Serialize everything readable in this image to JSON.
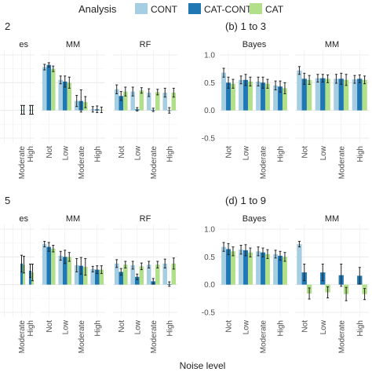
{
  "legend": {
    "title": "Analysis",
    "items": [
      {
        "label": "CONT",
        "color": "#a6cee3"
      },
      {
        "label": "CAT-CONT",
        "color": "#1f78b4"
      },
      {
        "label": "CAT",
        "color": "#b2df8a"
      }
    ]
  },
  "x_axis_title": "Noise level",
  "chart_data": {
    "type": "bar",
    "categories": [
      "Not",
      "Low",
      "Moderate",
      "High"
    ],
    "ylim": [
      -0.5,
      1.0
    ],
    "y_ticks": [
      "1.0",
      "0.5",
      "0.0",
      "-0.5"
    ],
    "panels": [
      {
        "title": "2",
        "facets": [
          {
            "title": "es",
            "series": [
              {
                "name": "CONT",
                "values": [
                  null,
                  null,
                  null,
                  null
                ],
                "err": [
                  0,
                  0,
                  0,
                  0
                ]
              },
              {
                "name": "CAT-CONT",
                "values": [
                  null,
                  null,
                  0.01,
                  0.01
                ],
                "err": [
                  0,
                  0,
                  0.08,
                  0.08
                ]
              },
              {
                "name": "CAT",
                "values": [
                  null,
                  null,
                  0.01,
                  0.01
                ],
                "err": [
                  0,
                  0,
                  0.08,
                  0.08
                ]
              }
            ]
          },
          {
            "title": "MM",
            "series": [
              {
                "name": "CONT",
                "values": [
                  0.78,
                  0.55,
                  0.17,
                  0.02
                ],
                "err": [
                  0.05,
                  0.07,
                  0.1,
                  0.05
                ]
              },
              {
                "name": "CAT-CONT",
                "values": [
                  0.82,
                  0.52,
                  0.17,
                  0.02
                ],
                "err": [
                  0.04,
                  0.1,
                  0.2,
                  0.06
                ]
              },
              {
                "name": "CAT",
                "values": [
                  0.75,
                  0.5,
                  0.15,
                  0.01
                ],
                "err": [
                  0.05,
                  0.1,
                  0.1,
                  0.05
                ]
              }
            ]
          },
          {
            "title": "RF",
            "series": [
              {
                "name": "CONT",
                "values": [
                  0.38,
                  0.34,
                  0.32,
                  0.32
                ],
                "err": [
                  0.08,
                  0.08,
                  0.07,
                  0.08
                ]
              },
              {
                "name": "CAT-CONT",
                "values": [
                  0.26,
                  0.02,
                  0.01,
                  0.0
                ],
                "err": [
                  0.08,
                  0.03,
                  0.03,
                  0.05
                ]
              },
              {
                "name": "CAT",
                "values": [
                  0.34,
                  0.36,
                  0.33,
                  0.32
                ],
                "err": [
                  0.08,
                  0.05,
                  0.05,
                  0.08
                ]
              }
            ]
          }
        ]
      },
      {
        "title": "(b) 1 to 3",
        "facets": [
          {
            "title": "Bayes",
            "series": [
              {
                "name": "CONT",
                "values": [
                  0.68,
                  0.55,
                  0.52,
                  0.45
                ],
                "err": [
                  0.08,
                  0.07,
                  0.08,
                  0.08
                ]
              },
              {
                "name": "CAT-CONT",
                "values": [
                  0.5,
                  0.55,
                  0.5,
                  0.43
                ],
                "err": [
                  0.1,
                  0.1,
                  0.1,
                  0.1
                ]
              },
              {
                "name": "CAT",
                "values": [
                  0.48,
                  0.52,
                  0.48,
                  0.4
                ],
                "err": [
                  0.08,
                  0.08,
                  0.08,
                  0.1
                ]
              }
            ]
          },
          {
            "title": "MM",
            "series": [
              {
                "name": "CONT",
                "values": [
                  0.72,
                  0.58,
                  0.57,
                  0.56
                ],
                "err": [
                  0.07,
                  0.07,
                  0.08,
                  0.07
                ]
              },
              {
                "name": "CAT-CONT",
                "values": [
                  0.57,
                  0.58,
                  0.57,
                  0.57
                ],
                "err": [
                  0.1,
                  0.07,
                  0.1,
                  0.07
                ]
              },
              {
                "name": "CAT",
                "values": [
                  0.55,
                  0.57,
                  0.55,
                  0.55
                ],
                "err": [
                  0.08,
                  0.07,
                  0.1,
                  0.07
                ]
              }
            ]
          }
        ]
      },
      {
        "title": "5",
        "facets": [
          {
            "title": "es",
            "series": [
              {
                "name": "CONT",
                "values": [
                  null,
                  null,
                  null,
                  null
                ],
                "err": [
                  0,
                  0,
                  0,
                  0
                ]
              },
              {
                "name": "CAT-CONT",
                "values": [
                  null,
                  null,
                  0.38,
                  0.25
                ],
                "err": [
                  0,
                  0,
                  0.15,
                  0.12
                ]
              },
              {
                "name": "CAT",
                "values": [
                  null,
                  null,
                  0.36,
                  0.22
                ],
                "err": [
                  0,
                  0,
                  0.15,
                  0.15
                ]
              }
            ]
          },
          {
            "title": "MM",
            "series": [
              {
                "name": "CONT",
                "values": [
                  0.73,
                  0.52,
                  0.35,
                  0.28
                ],
                "err": [
                  0.05,
                  0.08,
                  0.12,
                  0.05
                ]
              },
              {
                "name": "CAT-CONT",
                "values": [
                  0.68,
                  0.5,
                  0.34,
                  0.27
                ],
                "err": [
                  0.08,
                  0.12,
                  0.15,
                  0.07
                ]
              },
              {
                "name": "CAT",
                "values": [
                  0.65,
                  0.5,
                  0.32,
                  0.27
                ],
                "err": [
                  0.06,
                  0.08,
                  0.15,
                  0.07
                ]
              }
            ]
          },
          {
            "title": "RF",
            "series": [
              {
                "name": "CONT",
                "values": [
                  0.38,
                  0.35,
                  0.36,
                  0.38
                ],
                "err": [
                  0.07,
                  0.07,
                  0.06,
                  0.08
                ]
              },
              {
                "name": "CAT-CONT",
                "values": [
                  0.23,
                  0.14,
                  0.06,
                  0.01
                ],
                "err": [
                  0.06,
                  0.05,
                  0.05,
                  0.04
                ]
              },
              {
                "name": "CAT",
                "values": [
                  0.36,
                  0.33,
                  0.36,
                  0.38
                ],
                "err": [
                  0.06,
                  0.06,
                  0.06,
                  0.1
                ]
              }
            ]
          }
        ]
      },
      {
        "title": "(d) 1 to 9",
        "facets": [
          {
            "title": "Bayes",
            "series": [
              {
                "name": "CONT",
                "values": [
                  0.68,
                  0.63,
                  0.6,
                  0.55
                ],
                "err": [
                  0.08,
                  0.08,
                  0.08,
                  0.07
                ]
              },
              {
                "name": "CAT-CONT",
                "values": [
                  0.64,
                  0.62,
                  0.58,
                  0.52
                ],
                "err": [
                  0.1,
                  0.1,
                  0.08,
                  0.08
                ]
              },
              {
                "name": "CAT",
                "values": [
                  0.6,
                  0.58,
                  0.55,
                  0.5
                ],
                "err": [
                  0.08,
                  0.08,
                  0.08,
                  0.08
                ]
              }
            ]
          },
          {
            "title": "MM",
            "series": [
              {
                "name": "CONT",
                "values": [
                  0.73,
                  null,
                  null,
                  null
                ],
                "err": [
                  0.05,
                  0,
                  0,
                  0
                ]
              },
              {
                "name": "CAT-CONT",
                "values": [
                  0.22,
                  0.22,
                  0.17,
                  0.16
                ],
                "err": [
                  0.15,
                  0.15,
                  0.2,
                  0.15
                ]
              },
              {
                "name": "CAT",
                "values": [
                  -0.16,
                  -0.14,
                  -0.17,
                  -0.17
                ],
                "err": [
                  0.1,
                  0.1,
                  0.12,
                  0.1
                ]
              }
            ]
          }
        ]
      }
    ]
  }
}
